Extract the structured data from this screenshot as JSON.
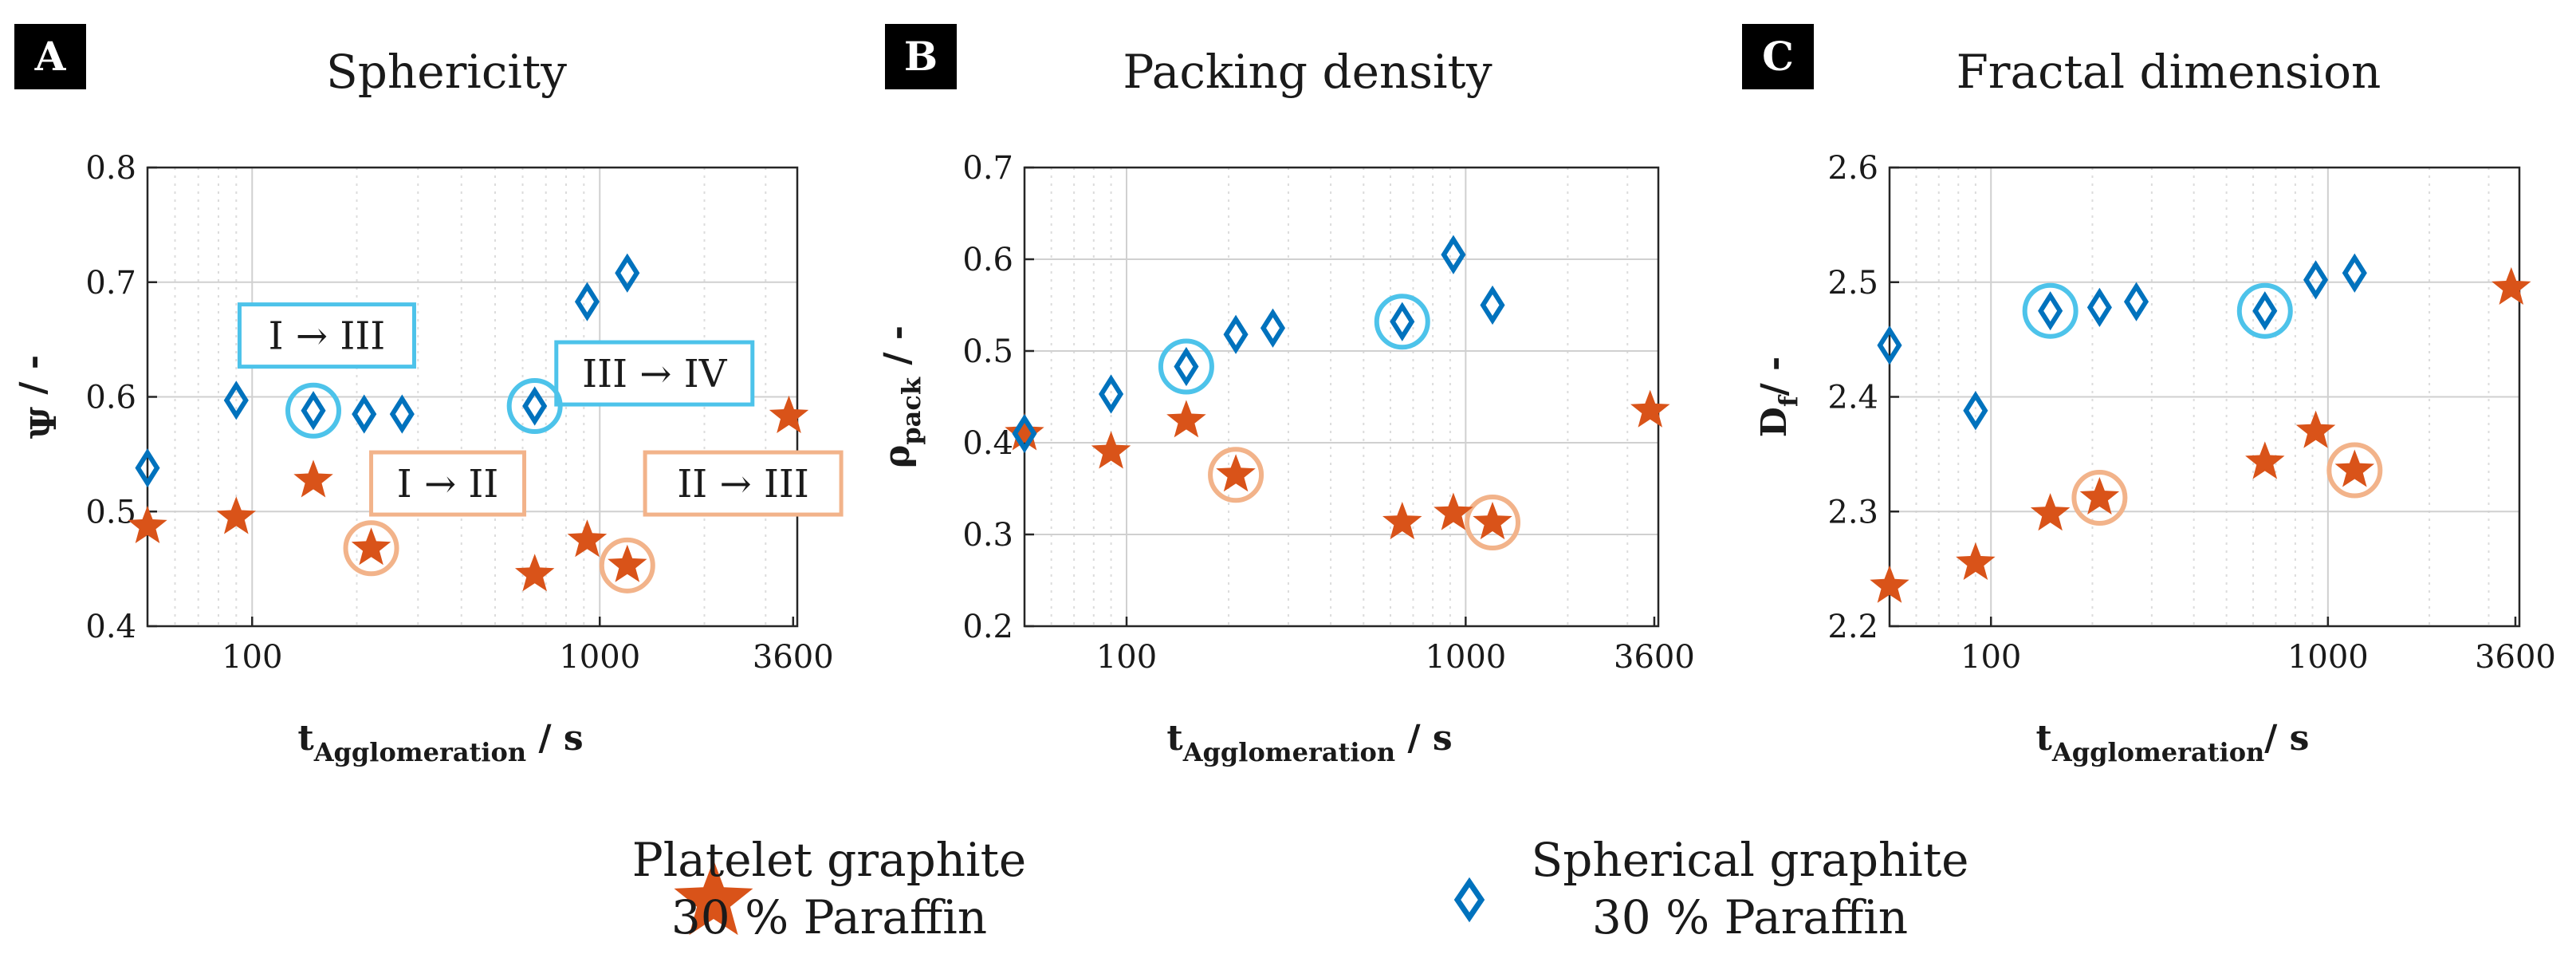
{
  "colors": {
    "platelet": "#d95319",
    "spherical": "#0072bd",
    "highlight_blue": "#4dc3ea",
    "highlight_orange": "#f2b38a",
    "grid": "#cfcfcf"
  },
  "legend": {
    "platelet": {
      "line1": "Platelet graphite",
      "line2": "30 % Paraffin",
      "marker": "star"
    },
    "spherical": {
      "line1": "Spherical graphite",
      "line2": "30 % Paraffin",
      "marker": "diamond"
    }
  },
  "chart_data": [
    {
      "panel": "A",
      "type": "scatter",
      "title": "Sphericity",
      "xlabel": {
        "main": "t",
        "sub": "Agglomeration",
        "tail": " / s"
      },
      "ylabel": {
        "main": "Ψ",
        "sub": "",
        "tail": " / -"
      },
      "xscale": "log",
      "xlim": [
        50,
        3700
      ],
      "ylim": [
        0.4,
        0.8
      ],
      "xticks": [
        100,
        1000,
        3600
      ],
      "xtick_labels": [
        "100",
        "1000",
        "3600"
      ],
      "yticks": [
        0.4,
        0.5,
        0.6,
        0.7,
        0.8
      ],
      "ytick_labels": [
        "0.4",
        "0.5",
        "0.6",
        "0.7",
        "0.8"
      ],
      "grid": true,
      "series": [
        {
          "marker": "star",
          "color_key": "platelet",
          "x": [
            50,
            90,
            150,
            220,
            650,
            920,
            1200,
            3500
          ],
          "y": [
            0.487,
            0.495,
            0.527,
            0.468,
            0.445,
            0.475,
            0.453,
            0.583
          ]
        },
        {
          "marker": "diamond",
          "color_key": "spherical",
          "x": [
            50,
            90,
            150,
            210,
            270,
            650,
            920,
            1200
          ],
          "y": [
            0.538,
            0.597,
            0.588,
            0.585,
            0.585,
            0.592,
            0.683,
            0.708
          ]
        }
      ],
      "highlights": [
        {
          "x": 150,
          "y": 0.588,
          "color_key": "highlight_blue"
        },
        {
          "x": 650,
          "y": 0.592,
          "color_key": "highlight_blue"
        },
        {
          "x": 220,
          "y": 0.468,
          "color_key": "highlight_orange"
        },
        {
          "x": 1200,
          "y": 0.453,
          "color_key": "highlight_orange"
        }
      ],
      "annotations": [
        {
          "text": "I → III",
          "x": 92,
          "y": 0.65,
          "color_key": "highlight_blue"
        },
        {
          "text": "III → IV",
          "x": 750,
          "y": 0.617,
          "color_key": "highlight_blue"
        },
        {
          "text": "I → II",
          "x": 220,
          "y": 0.521,
          "color_key": "highlight_orange"
        },
        {
          "text": "II → III",
          "x": 1350,
          "y": 0.521,
          "color_key": "highlight_orange"
        }
      ]
    },
    {
      "panel": "B",
      "type": "scatter",
      "title": "Packing density",
      "xlabel": {
        "main": "t",
        "sub": "Agglomeration",
        "tail": " / s"
      },
      "ylabel": {
        "main": "ρ",
        "sub": "pack",
        "tail": " / -"
      },
      "xscale": "log",
      "xlim": [
        50,
        3700
      ],
      "ylim": [
        0.2,
        0.7
      ],
      "xticks": [
        100,
        1000,
        3600
      ],
      "xtick_labels": [
        "100",
        "1000",
        "3600"
      ],
      "yticks": [
        0.2,
        0.3,
        0.4,
        0.5,
        0.6,
        0.7
      ],
      "ytick_labels": [
        "0.2",
        "0.3",
        "0.4",
        "0.5",
        "0.6",
        "0.7"
      ],
      "grid": true,
      "series": [
        {
          "marker": "star",
          "color_key": "platelet",
          "x": [
            50,
            90,
            150,
            210,
            650,
            920,
            1200,
            3500
          ],
          "y": [
            0.41,
            0.39,
            0.424,
            0.365,
            0.313,
            0.323,
            0.313,
            0.435
          ]
        },
        {
          "marker": "diamond",
          "color_key": "spherical",
          "x": [
            50,
            90,
            150,
            210,
            270,
            650,
            920,
            1200
          ],
          "y": [
            0.41,
            0.453,
            0.483,
            0.518,
            0.525,
            0.532,
            0.605,
            0.55
          ]
        }
      ],
      "highlights": [
        {
          "x": 150,
          "y": 0.483,
          "color_key": "highlight_blue"
        },
        {
          "x": 650,
          "y": 0.532,
          "color_key": "highlight_blue"
        },
        {
          "x": 210,
          "y": 0.365,
          "color_key": "highlight_orange"
        },
        {
          "x": 1200,
          "y": 0.313,
          "color_key": "highlight_orange"
        }
      ],
      "annotations": []
    },
    {
      "panel": "C",
      "type": "scatter",
      "title": "Fractal dimension",
      "xlabel": {
        "main": "t",
        "sub": "Agglomeration",
        "tail": "/ s"
      },
      "ylabel": {
        "main": "D",
        "sub": "f",
        "tail": "/ -"
      },
      "xscale": "log",
      "xlim": [
        50,
        3700
      ],
      "ylim": [
        2.2,
        2.6
      ],
      "xticks": [
        100,
        1000,
        3600
      ],
      "xtick_labels": [
        "100",
        "1000",
        "3600"
      ],
      "yticks": [
        2.2,
        2.3,
        2.4,
        2.5,
        2.6
      ],
      "ytick_labels": [
        "2.2",
        "2.3",
        "2.4",
        "2.5",
        "2.6"
      ],
      "grid": true,
      "series": [
        {
          "marker": "star",
          "color_key": "platelet",
          "x": [
            50,
            90,
            150,
            210,
            650,
            920,
            1200,
            3500
          ],
          "y": [
            2.235,
            2.255,
            2.298,
            2.312,
            2.343,
            2.37,
            2.336,
            2.495
          ]
        },
        {
          "marker": "diamond",
          "color_key": "spherical",
          "x": [
            50,
            90,
            150,
            210,
            270,
            650,
            920,
            1200
          ],
          "y": [
            2.445,
            2.388,
            2.475,
            2.478,
            2.483,
            2.475,
            2.502,
            2.508
          ]
        }
      ],
      "highlights": [
        {
          "x": 150,
          "y": 2.475,
          "color_key": "highlight_blue"
        },
        {
          "x": 650,
          "y": 2.475,
          "color_key": "highlight_blue"
        },
        {
          "x": 210,
          "y": 2.312,
          "color_key": "highlight_orange"
        },
        {
          "x": 1200,
          "y": 2.336,
          "color_key": "highlight_orange"
        }
      ],
      "annotations": []
    }
  ]
}
